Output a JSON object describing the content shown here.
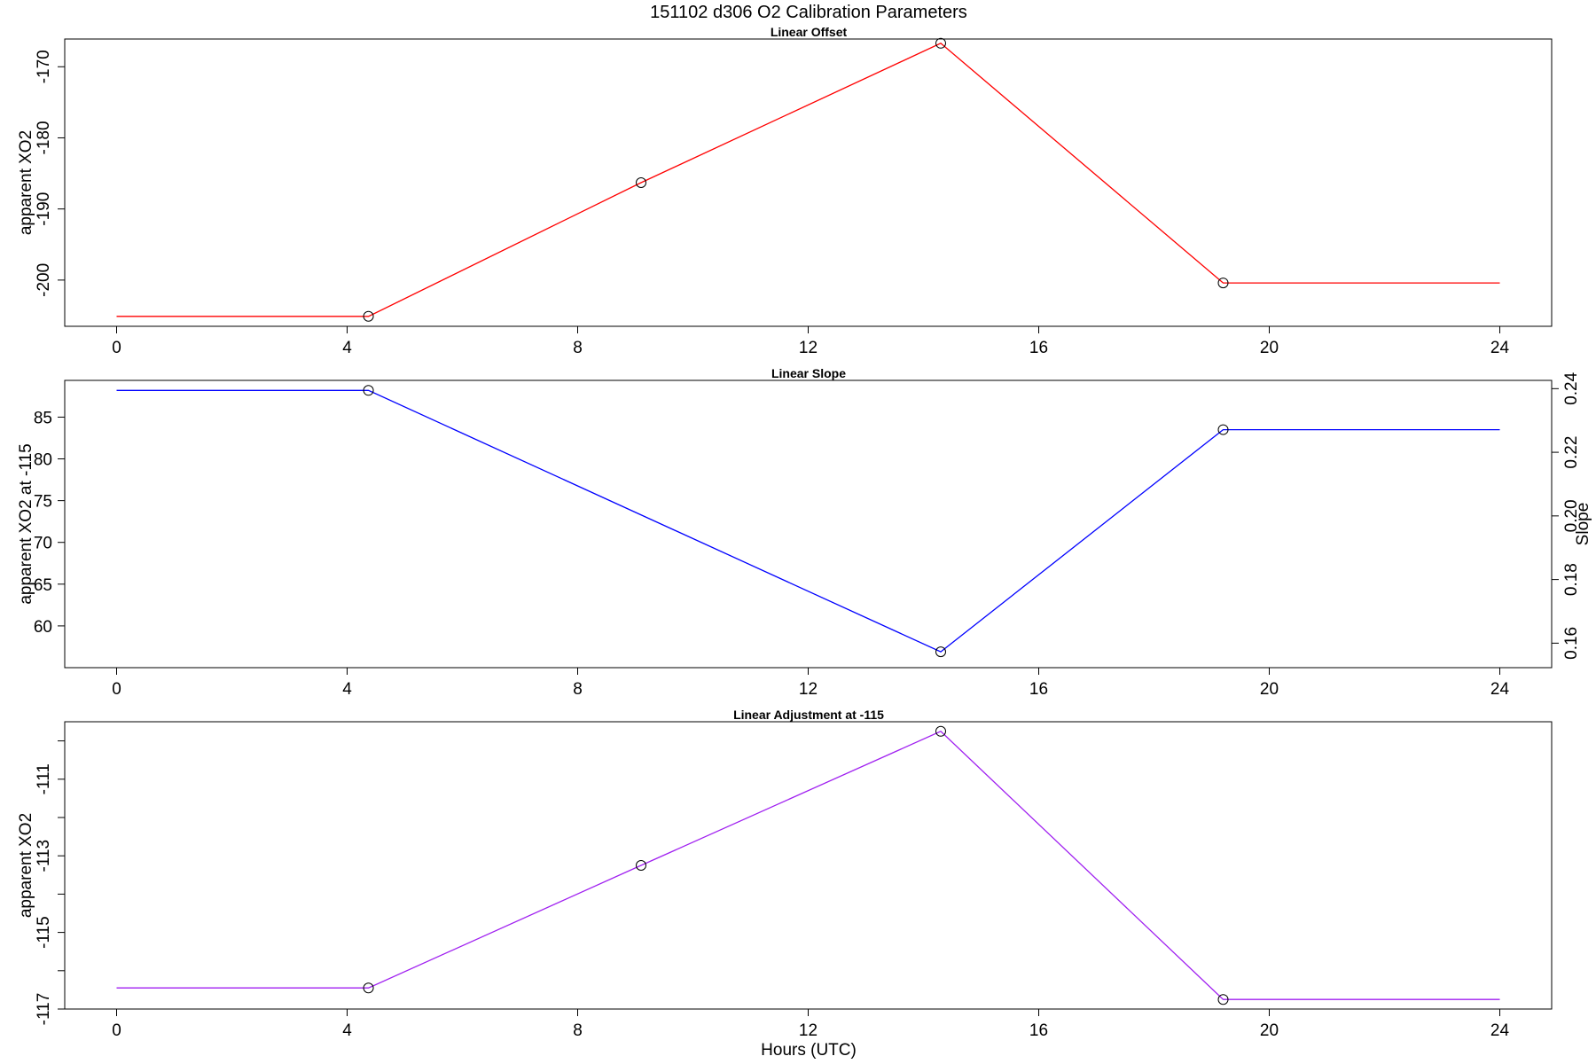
{
  "figure": {
    "title": "151102   d306   O2 Calibration Parameters",
    "xlabel": "Hours (UTC)"
  },
  "chart_data": [
    {
      "type": "line",
      "title": "Linear Offset",
      "xlabel": "",
      "ylabel": "apparent XO2",
      "xlim": [
        -0.9,
        24.9
      ],
      "ylim": [
        -206.5,
        -166.1
      ],
      "xticks": [
        0,
        4,
        8,
        12,
        16,
        20,
        24
      ],
      "yticks": [
        -200,
        -190,
        -180,
        -170
      ],
      "color": "#ff0000",
      "series": [
        {
          "x": [
            0,
            4.37,
            9.1,
            14.3,
            19.2,
            24
          ],
          "y": [
            -205.1,
            -205.1,
            -186.3,
            -166.7,
            -200.4,
            -200.4
          ]
        }
      ],
      "markers_x": [
        4.37,
        9.1,
        14.3,
        19.2
      ],
      "markers_y": [
        -205.1,
        -186.3,
        -166.7,
        -200.4
      ]
    },
    {
      "type": "line",
      "title": "Linear Slope",
      "xlabel": "",
      "ylabel": "apparent XO2 at -115",
      "ylabel_right": "Slope",
      "xlim": [
        -0.9,
        24.9
      ],
      "ylim": [
        55.0,
        89.4
      ],
      "xticks": [
        0,
        4,
        8,
        12,
        16,
        20,
        24
      ],
      "yticks": [
        60,
        65,
        70,
        75,
        80,
        85
      ],
      "yticks_right": [
        0.16,
        0.18,
        0.2,
        0.22,
        0.24
      ],
      "ylim_right": [
        0.1523,
        0.2426
      ],
      "color": "#0000ff",
      "series": [
        {
          "x": [
            0,
            4.37,
            14.3,
            19.2,
            24
          ],
          "y": [
            88.2,
            88.2,
            56.9,
            83.5,
            83.5
          ]
        }
      ],
      "markers_x": [
        4.37,
        14.3,
        19.2
      ],
      "markers_y": [
        88.2,
        56.9,
        83.5
      ]
    },
    {
      "type": "line",
      "title": "Linear Adjustment at -115",
      "xlabel": "Hours (UTC)",
      "ylabel": "apparent XO2",
      "xlim": [
        -0.9,
        24.9
      ],
      "ylim": [
        -117.0,
        -109.5
      ],
      "xticks": [
        0,
        4,
        8,
        12,
        16,
        20,
        24
      ],
      "yticks": [
        -117,
        -116,
        -115,
        -114,
        -113,
        -112,
        -111,
        -110
      ],
      "yticks_labeled": [
        -117,
        -115,
        -113,
        -111
      ],
      "color": "#a020f0",
      "series": [
        {
          "x": [
            0,
            4.37,
            9.1,
            14.3,
            19.2,
            24
          ],
          "y": [
            -116.45,
            -116.45,
            -113.25,
            -109.75,
            -116.75,
            -116.75
          ]
        }
      ],
      "markers_x": [
        4.37,
        9.1,
        14.3,
        19.2
      ],
      "markers_y": [
        -116.45,
        -113.25,
        -109.75,
        -116.75
      ]
    }
  ]
}
